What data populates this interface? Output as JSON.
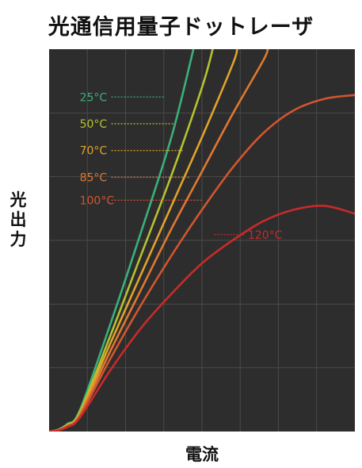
{
  "chart_data": {
    "type": "line",
    "title": "光通信用量子ドットレーザ",
    "xlabel": "電流",
    "ylabel": "光出力",
    "xlim": [
      0,
      100
    ],
    "ylim": [
      0,
      100
    ],
    "grid": true,
    "background": "#2d2d2d",
    "grid_color": "#4a4a4a",
    "series": [
      {
        "name": "25°C",
        "color": "#3bb07a",
        "x": [
          0,
          3,
          6,
          10,
          20,
          30,
          40,
          47.2
        ],
        "y": [
          0,
          0.5,
          2,
          5.5,
          28,
          52,
          77,
          100
        ]
      },
      {
        "name": "50°C",
        "color": "#b6c22f",
        "x": [
          0,
          3,
          6,
          10,
          20,
          30,
          40,
          50,
          53.5
        ],
        "y": [
          0,
          0.4,
          1.8,
          5,
          25,
          46,
          67,
          90,
          100
        ]
      },
      {
        "name": "70°C",
        "color": "#e2a32a",
        "x": [
          0,
          3,
          6,
          10,
          20,
          30,
          40,
          50,
          60,
          61.5
        ],
        "y": [
          0,
          0.4,
          1.6,
          4.6,
          23,
          41,
          59,
          77,
          96,
          100
        ]
      },
      {
        "name": "85°C",
        "color": "#e07830",
        "x": [
          0,
          3,
          6,
          10,
          20,
          30,
          40,
          50,
          60,
          70,
          71.5
        ],
        "y": [
          0,
          0.3,
          1.5,
          4.2,
          21,
          37,
          53,
          68,
          83,
          97,
          100
        ]
      },
      {
        "name": "100°C",
        "color": "#d2552e",
        "x": [
          0,
          3,
          6,
          10,
          20,
          30,
          40,
          50,
          60,
          70,
          80,
          90,
          100
        ],
        "y": [
          0,
          0.3,
          1.4,
          4,
          19,
          33,
          46,
          58,
          69,
          78,
          84,
          87,
          88
        ]
      },
      {
        "name": "120°C",
        "color": "#c92a2a",
        "x": [
          0,
          3,
          6,
          10,
          20,
          30,
          40,
          50,
          60,
          70,
          80,
          90,
          100
        ],
        "y": [
          0,
          0.3,
          1.2,
          3.6,
          16,
          27,
          36,
          44,
          50,
          55,
          58,
          59,
          57
        ]
      }
    ],
    "annotations": [
      {
        "text": "25°C",
        "color": "#3bb07a",
        "x": 10,
        "y": 87.5,
        "line_to_x": 38
      },
      {
        "text": "50°C",
        "color": "#b6c22f",
        "x": 10,
        "y": 80.5,
        "line_to_x": 41
      },
      {
        "text": "70°C",
        "color": "#e2a32a",
        "x": 10,
        "y": 73.5,
        "line_to_x": 44
      },
      {
        "text": "85°C",
        "color": "#e07830",
        "x": 10,
        "y": 66.5,
        "line_to_x": 46
      },
      {
        "text": "100°C",
        "color": "#d2552e",
        "x": 10,
        "y": 60.5,
        "line_to_x": 50
      },
      {
        "text": "120°C",
        "color": "#c92a2a",
        "x": 65,
        "y": 51.5,
        "line_from_x": 54
      }
    ]
  }
}
